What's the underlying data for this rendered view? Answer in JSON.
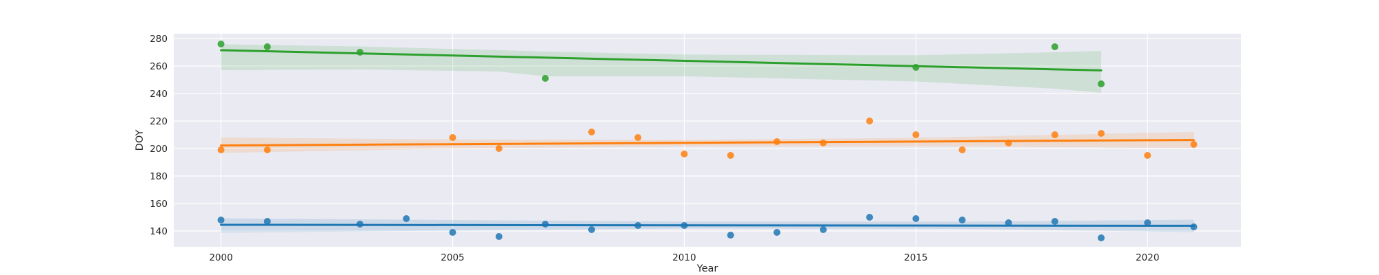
{
  "chart_data": {
    "type": "scatter",
    "xlabel": "Year",
    "ylabel": "DOY",
    "xlim": [
      1998.98,
      2022.02
    ],
    "ylim": [
      128.5,
      283.5
    ],
    "xticks": [
      2000,
      2005,
      2010,
      2015,
      2020
    ],
    "yticks": [
      140,
      160,
      180,
      200,
      220,
      240,
      260,
      280
    ],
    "grid": true,
    "background": "#eaeaf2",
    "series": [
      {
        "color": "#1f77b4",
        "x": [
          2000,
          2001,
          2003,
          2004,
          2005,
          2006,
          2007,
          2008,
          2009,
          2010,
          2011,
          2012,
          2013,
          2014,
          2015,
          2016,
          2017,
          2018,
          2019,
          2020,
          2021
        ],
        "y": [
          148,
          147,
          145,
          149,
          139,
          136,
          145,
          141,
          144,
          144,
          137,
          139,
          141,
          150,
          149,
          148,
          146,
          147,
          135,
          146,
          143
        ],
        "fit": [
          144.5,
          143.8
        ],
        "band": {
          "x": [
            2000,
            2010,
            2016,
            2021
          ],
          "lower": [
            138.8,
            141.8,
            141.5,
            139.2
          ],
          "upper": [
            149.2,
            146.8,
            146.8,
            148.2
          ]
        }
      },
      {
        "color": "#ff7f0e",
        "x": [
          2000,
          2001,
          2005,
          2006,
          2008,
          2009,
          2010,
          2011,
          2012,
          2013,
          2014,
          2015,
          2016,
          2017,
          2018,
          2019,
          2020,
          2021
        ],
        "y": [
          199,
          199,
          208,
          200,
          212,
          208,
          196,
          195,
          205,
          204,
          220,
          210,
          199,
          204,
          210,
          211,
          195,
          203
        ],
        "fit": [
          202.2,
          206.2
        ],
        "band": {
          "x": [
            2000,
            2005,
            2010,
            2015,
            2021
          ],
          "lower": [
            196.8,
            200.0,
            201.5,
            201.6,
            200.5
          ],
          "upper": [
            208.0,
            206.6,
            206.2,
            207.8,
            212.0
          ]
        }
      },
      {
        "color": "#2ca02c",
        "x": [
          2000,
          2001,
          2003,
          2007,
          2015,
          2018,
          2019
        ],
        "y": [
          276,
          274,
          270,
          251,
          259,
          274,
          247
        ],
        "fit": [
          271.5,
          256.8
        ],
        "band": {
          "x": [
            2000,
            2003,
            2006,
            2007,
            2010,
            2015,
            2018,
            2019
          ],
          "lower": [
            257.0,
            257.5,
            256.0,
            252.5,
            252.5,
            248.8,
            243.5,
            240.5
          ],
          "upper": [
            275.8,
            274.2,
            271.5,
            270.5,
            268.3,
            267.8,
            270.0,
            271.0
          ]
        }
      }
    ]
  }
}
